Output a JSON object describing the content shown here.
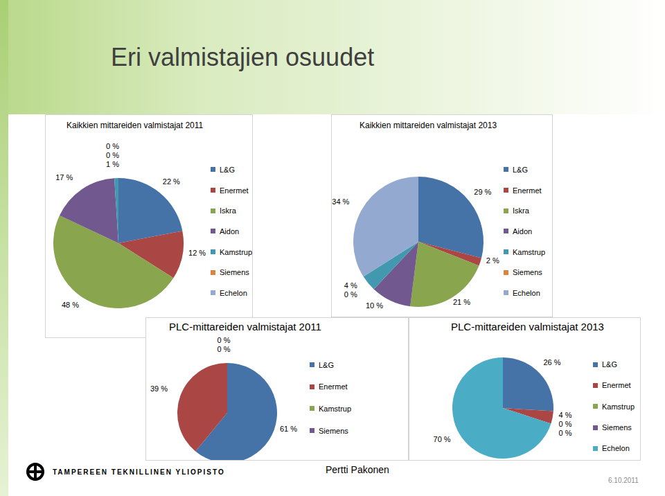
{
  "slide": {
    "title": "Eri valmistajien osuudet",
    "institution": "TAMPEREEN TEKNILLINEN YLIOPISTO",
    "author": "Pertti Pakonen",
    "date": "6.10.2011"
  },
  "chart_data": [
    {
      "type": "pie",
      "title": "Kaikkien mittareiden valmistajat 2011",
      "categories": [
        "L&G",
        "Enermet",
        "Iskra",
        "Aidon",
        "Kamstrup",
        "Siemens",
        "Echelon"
      ],
      "values": [
        22,
        12,
        48,
        17,
        1,
        0,
        0
      ],
      "value_labels": [
        "22 %",
        "12 %",
        "48 %",
        "17 %",
        "1 %",
        "0 %",
        "0 %"
      ],
      "colors": [
        "#4572A7",
        "#AA4643",
        "#89A54E",
        "#71588F",
        "#4198AF",
        "#DB843D",
        "#93A9CF"
      ],
      "legend": "right",
      "data_labels": true
    },
    {
      "type": "pie",
      "title": "Kaikkien mittareiden valmistajat 2013",
      "categories": [
        "L&G",
        "Enermet",
        "Iskra",
        "Aidon",
        "Kamstrup",
        "Siemens",
        "Echelon"
      ],
      "values": [
        29,
        2,
        21,
        10,
        4,
        0,
        34
      ],
      "value_labels": [
        "29 %",
        "2 %",
        "21 %",
        "10 %",
        "4 %",
        "0 %",
        "34 %"
      ],
      "colors": [
        "#4572A7",
        "#AA4643",
        "#89A54E",
        "#71588F",
        "#4198AF",
        "#DB843D",
        "#93A9CF"
      ],
      "legend": "right",
      "data_labels": true
    },
    {
      "type": "pie",
      "title": "PLC-mittareiden valmistajat 2011",
      "categories": [
        "L&G",
        "Enermet",
        "Kamstrup",
        "Siemens"
      ],
      "values": [
        61,
        39,
        0,
        0
      ],
      "value_labels": [
        "61 %",
        "39 %",
        "0 %",
        "0 %"
      ],
      "colors": [
        "#4572A7",
        "#AA4643",
        "#89A54E",
        "#71588F"
      ],
      "legend": "right",
      "data_labels": true
    },
    {
      "type": "pie",
      "title": "PLC-mittareiden valmistajat 2013",
      "categories": [
        "L&G",
        "Enermet",
        "Kamstrup",
        "Siemens",
        "Echelon"
      ],
      "values": [
        26,
        4,
        0,
        0,
        70
      ],
      "value_labels": [
        "26 %",
        "4 %",
        "0 %",
        "0 %",
        "70 %"
      ],
      "colors": [
        "#4572A7",
        "#AA4643",
        "#89A54E",
        "#71588F",
        "#4BACC6"
      ],
      "legend": "right",
      "data_labels": true
    }
  ]
}
